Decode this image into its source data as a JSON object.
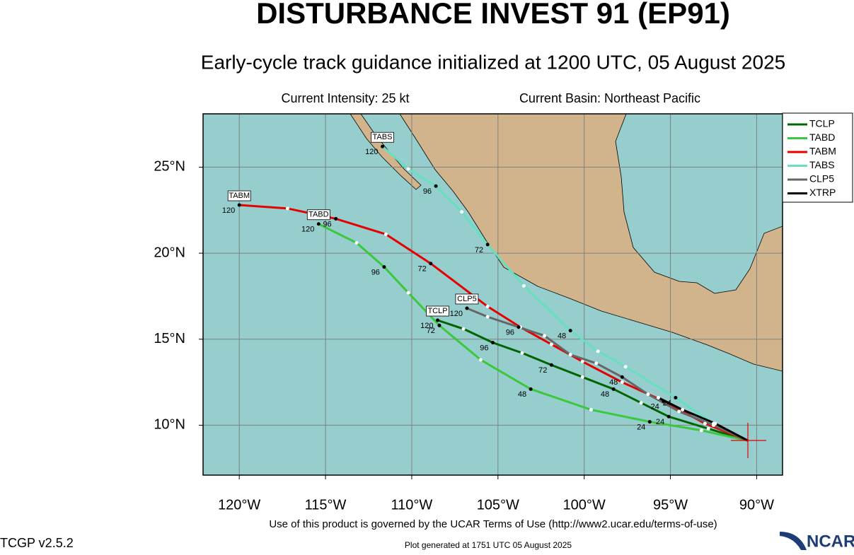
{
  "chart_data": {
    "type": "track",
    "title": "DISTURBANCE INVEST 91 (EP91)",
    "subtitle": "Early-cycle track guidance initialized at 1200 UTC, 05 August 2025",
    "annotations": [
      "Current Intensity: 25 kt",
      "Current Basin: Northeast Pacific"
    ],
    "footer": "Use of this product is governed by the UCAR Terms of Use (http://www2.ucar.edu/terms-of-use)",
    "version": "TCGP v2.5.2",
    "generated": "Plot generated at 1751 UTC   05 August 2025",
    "logo": "NCAR",
    "xlim": [
      -122.1,
      -88.5
    ],
    "ylim": [
      7.1,
      28.1
    ],
    "xticks": [
      {
        "value": -120,
        "label": "120°W"
      },
      {
        "value": -115,
        "label": "115°W"
      },
      {
        "value": -110,
        "label": "110°W"
      },
      {
        "value": -105,
        "label": "105°W"
      },
      {
        "value": -100,
        "label": "100°W"
      },
      {
        "value": -95,
        "label": "95°W"
      },
      {
        "value": -90,
        "label": "90°W"
      }
    ],
    "yticks": [
      {
        "value": 10,
        "label": "10°N"
      },
      {
        "value": 15,
        "label": "15°N"
      },
      {
        "value": 20,
        "label": "20°N"
      },
      {
        "value": 25,
        "label": "25°N"
      }
    ],
    "grid": true,
    "legend": "outside-right",
    "series": [
      {
        "name": "TCLP",
        "color": "#006400",
        "x": [
          -90.5,
          -92.8,
          -95.1,
          -96.7,
          -98.3,
          -100.1,
          -101.9,
          -103.6,
          -105.3,
          -107.0,
          -108.5
        ],
        "values": [
          9.1,
          9.8,
          10.5,
          11.3,
          12.1,
          12.8,
          13.5,
          14.2,
          14.8,
          15.6,
          16.1
        ],
        "labels": [
          null,
          null,
          24,
          null,
          48,
          null,
          72,
          null,
          96,
          null,
          120
        ]
      },
      {
        "name": "TABD",
        "color": "#3cc83c",
        "x": [
          -90.5,
          -93.2,
          -96.2,
          -99.6,
          -103.1,
          -106.0,
          -108.4,
          -110.2,
          -111.6,
          -113.2,
          -115.4
        ],
        "values": [
          9.1,
          9.7,
          10.2,
          10.9,
          12.1,
          13.8,
          15.8,
          17.7,
          19.2,
          20.6,
          21.7
        ],
        "labels": [
          null,
          null,
          24,
          null,
          48,
          null,
          72,
          null,
          96,
          null,
          120
        ]
      },
      {
        "name": "TABM",
        "color": "#e60000",
        "x": [
          -90.5,
          -93.0,
          -95.4,
          -97.8,
          -100.1,
          -101.9,
          -103.7,
          -105.6,
          -108.9,
          -111.5,
          -114.4,
          -117.2,
          -120.0
        ],
        "values": [
          9.1,
          10.1,
          11.4,
          12.5,
          13.7,
          14.7,
          15.7,
          16.9,
          19.4,
          21.1,
          22.0,
          22.6,
          22.8
        ],
        "labels": [
          null,
          null,
          24,
          null,
          null,
          null,
          null,
          null,
          72,
          null,
          96,
          null,
          120
        ]
      },
      {
        "name": "TABS",
        "color": "#66e0c0",
        "x": [
          -90.5,
          -92.5,
          -94.7,
          -97.6,
          -99.2,
          -100.8,
          -103.5,
          -105.6,
          -107.1,
          -108.6,
          -110.2,
          -111.7
        ],
        "values": [
          9.1,
          10.1,
          11.6,
          13.4,
          14.3,
          15.5,
          18.1,
          20.5,
          22.4,
          23.9,
          24.9,
          26.2
        ],
        "labels": [
          null,
          null,
          24,
          null,
          null,
          48,
          null,
          72,
          null,
          96,
          null,
          120
        ]
      },
      {
        "name": "CLP5",
        "color": "#666666",
        "x": [
          -90.5,
          -92.5,
          -94.5,
          -96.3,
          -97.8,
          -99.3,
          -100.8,
          -102.3,
          -103.8,
          -105.6,
          -106.8
        ],
        "values": [
          9.1,
          10.0,
          10.8,
          11.8,
          12.8,
          13.6,
          14.1,
          15.2,
          15.7,
          16.3,
          16.8
        ],
        "labels": [
          null,
          null,
          null,
          null,
          48,
          null,
          null,
          null,
          96,
          null,
          120
        ]
      },
      {
        "name": "XTRP",
        "color": "#000000",
        "x": [
          -90.5,
          -92.4,
          -94.3,
          -95.7
        ],
        "values": [
          9.1,
          10.1,
          10.9,
          11.6
        ],
        "labels": [
          null,
          null,
          null,
          null
        ]
      }
    ]
  }
}
